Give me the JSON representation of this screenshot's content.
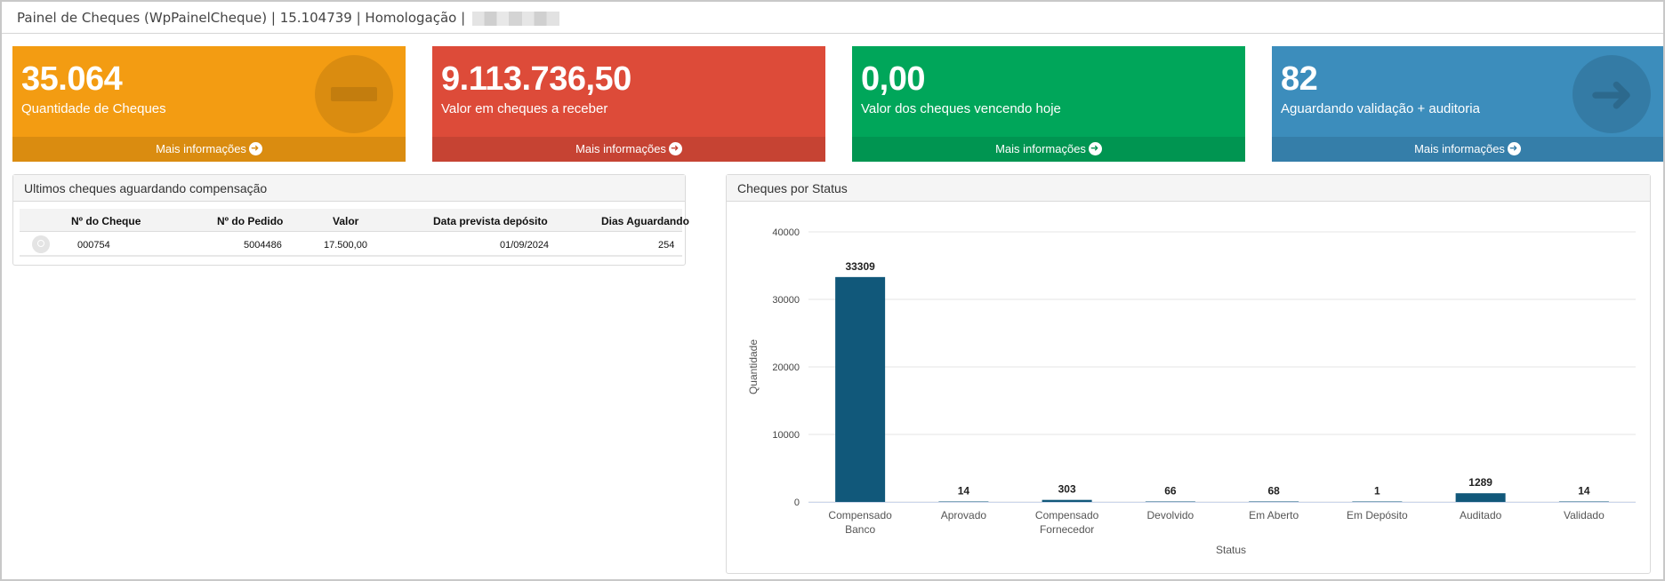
{
  "window": {
    "title": "Painel de Cheques (WpPainelCheque) | 15.104739 | Homologação |"
  },
  "cards": [
    {
      "value": "35.064",
      "label": "Quantidade de Cheques",
      "link": "Mais informações",
      "color": "#f39c12",
      "icon": "minus-circle-icon"
    },
    {
      "value": "9.113.736,50",
      "label": "Valor em cheques a receber",
      "link": "Mais informações",
      "color": "#dd4b39"
    },
    {
      "value": "0,00",
      "label": "Valor dos cheques vencendo hoje",
      "link": "Mais informações",
      "color": "#00a65a"
    },
    {
      "value": "82",
      "label": "Aguardando validação + auditoria",
      "link": "Mais informações",
      "color": "#3c8dbc",
      "icon": "arrow-right-circle-icon"
    }
  ],
  "cheques_panel": {
    "title": "Ultimos cheques aguardando compensação",
    "columns": [
      "Nº do Cheque",
      "Nº do Pedido",
      "Valor",
      "Data prevista depósito",
      "Dias Aguardando"
    ],
    "rows": [
      {
        "cheque": "000754",
        "pedido": "5004486",
        "valor": "17.500,00",
        "data": "01/09/2024",
        "dias": "254"
      }
    ]
  },
  "status_panel": {
    "title": "Cheques por Status"
  },
  "chart_data": {
    "type": "bar",
    "title": "",
    "xlabel": "Status",
    "ylabel": "Quantidade",
    "ylim": [
      0,
      40000
    ],
    "yticks": [
      "0",
      "10000",
      "20000",
      "30000",
      "40000"
    ],
    "grid": true,
    "color": "#11587a",
    "categories": [
      [
        "Compensado",
        "Banco"
      ],
      [
        "Aprovado"
      ],
      [
        "Compensado",
        "Fornecedor"
      ],
      [
        "Devolvido"
      ],
      [
        "Em Aberto"
      ],
      [
        "Em Depósito"
      ],
      [
        "Auditado"
      ],
      [
        "Validado"
      ]
    ],
    "values": [
      33309,
      14,
      303,
      66,
      68,
      1,
      1289,
      14
    ],
    "labels": [
      "33309",
      "14",
      "303",
      "66",
      "68",
      "1",
      "1289",
      "14"
    ]
  }
}
